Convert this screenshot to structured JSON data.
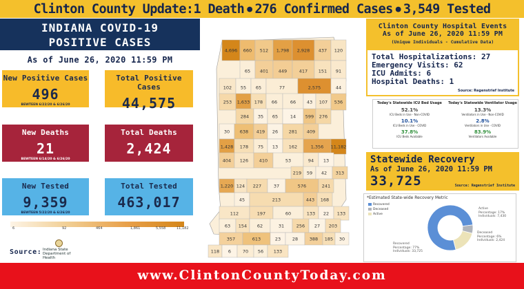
{
  "header": {
    "title": "Clinton County Update:1 Death",
    "part2": "276 Confirmed Cases",
    "part3": "3,549 Tested"
  },
  "left": {
    "title_line1": "INDIANA COVID-19",
    "title_line2": "POSITIVE CASES",
    "as_of": "As of June 26, 2020 11:59 PM",
    "cards": {
      "new_pos": {
        "label": "New Positive Cases",
        "value": "496",
        "sub": "BEWTEEN 6/22/20 & 6/26/20"
      },
      "total_pos": {
        "label": "Total Positive Cases",
        "value": "44,575"
      },
      "new_deaths": {
        "label": "New Deaths",
        "value": "21",
        "sub": "BEWTEEN 6/14/20 & 6/26/20"
      },
      "total_deaths": {
        "label": "Total Deaths",
        "value": "2,424"
      },
      "new_tested": {
        "label": "New Tested",
        "value": "9,359",
        "sub": "BEWTEEN 5/22/20 & 6/26/20"
      },
      "total_tested": {
        "label": "Total Tested",
        "value": "463,017"
      }
    },
    "legend_ticks": [
      "6",
      "92",
      "464",
      "1,861",
      "5,558",
      "11,182"
    ],
    "source_label": "Source:",
    "isdh_line1": "Indiana State",
    "isdh_line2": "Department of Health"
  },
  "map": {
    "counties": [
      {
        "v": "4,696",
        "c": "#d4861a"
      },
      {
        "v": "660",
        "c": "#eebb6e"
      },
      {
        "v": "512",
        "c": "#f1c98a"
      },
      {
        "v": "1,798",
        "c": "#e3a045"
      },
      {
        "v": "2,928",
        "c": "#dd9030"
      },
      {
        "v": "437",
        "c": "#f3cf98"
      },
      {
        "v": "120",
        "c": "#f8e5c4"
      },
      {
        "v": "65",
        "c": "#fbeed8"
      },
      {
        "v": "401",
        "c": "#f3cf98"
      },
      {
        "v": "449",
        "c": "#f3cd94"
      },
      {
        "v": "417",
        "c": "#f3cf98"
      },
      {
        "v": "151",
        "c": "#f8e2bd"
      },
      {
        "v": "91",
        "c": "#fae9cd"
      },
      {
        "v": "102",
        "c": "#f9e7c9"
      },
      {
        "v": "55",
        "c": "#fbf0dc"
      },
      {
        "v": "65",
        "c": "#fbeed8"
      },
      {
        "v": "77",
        "c": "#fbedd5"
      },
      {
        "v": "2,575",
        "c": "#dd9030"
      },
      {
        "v": "44",
        "c": "#fcf1df"
      },
      {
        "v": "253",
        "c": "#f6d9aa"
      },
      {
        "v": "1,633",
        "c": "#e3a045"
      },
      {
        "v": "178",
        "c": "#f7dfb6"
      },
      {
        "v": "66",
        "c": "#fbeed8"
      },
      {
        "v": "66",
        "c": "#fbeed8"
      },
      {
        "v": "43",
        "c": "#fcf1df"
      },
      {
        "v": "107",
        "c": "#f9e7c9"
      },
      {
        "v": "536",
        "c": "#f1c98a"
      },
      {
        "v": "284",
        "c": "#f5d7a5"
      },
      {
        "v": "35",
        "c": "#fcf2e2"
      },
      {
        "v": "65",
        "c": "#fbeed8"
      },
      {
        "v": "14",
        "c": "#fdf4e6"
      },
      {
        "v": "599",
        "c": "#f0c685"
      },
      {
        "v": "276",
        "c": "#f5d7a5"
      },
      {
        "v": "30",
        "c": "#fcf2e2"
      },
      {
        "v": "638",
        "c": "#eebf75"
      },
      {
        "v": "419",
        "c": "#f3cf98"
      },
      {
        "v": "26",
        "c": "#fcf3e4"
      },
      {
        "v": "281",
        "c": "#f5d7a5"
      },
      {
        "v": "409",
        "c": "#f3cf98"
      },
      {
        "v": "1,428",
        "c": "#e3a045"
      },
      {
        "v": "178",
        "c": "#f7dfb6"
      },
      {
        "v": "75",
        "c": "#fbedd5"
      },
      {
        "v": "13",
        "c": "#fdf4e6"
      },
      {
        "v": "162",
        "c": "#f8e1bb"
      },
      {
        "v": "1,356",
        "c": "#e5a44e"
      },
      {
        "v": "11,182",
        "c": "#d4861a"
      },
      {
        "v": "404",
        "c": "#f3cf98"
      },
      {
        "v": "126",
        "c": "#f9e5c4"
      },
      {
        "v": "410",
        "c": "#f3cf98"
      },
      {
        "v": "53",
        "c": "#fbf0dc"
      },
      {
        "v": "94",
        "c": "#fae9cd"
      },
      {
        "v": "13",
        "c": "#fdf4e6"
      },
      {
        "v": "219",
        "c": "#f6dcb0"
      },
      {
        "v": "59",
        "c": "#fbefda"
      },
      {
        "v": "42",
        "c": "#fcf1df"
      },
      {
        "v": "313",
        "c": "#f4d4a0"
      },
      {
        "v": "1,220",
        "c": "#e6a853"
      },
      {
        "v": "124",
        "c": "#f9e5c4"
      },
      {
        "v": "227",
        "c": "#f6dbae"
      },
      {
        "v": "37",
        "c": "#fcf2e2"
      },
      {
        "v": "576",
        "c": "#f0c685"
      },
      {
        "v": "241",
        "c": "#f6daac"
      },
      {
        "v": "45",
        "c": "#fcf1df"
      },
      {
        "v": "213",
        "c": "#f6dcb0"
      },
      {
        "v": "443",
        "c": "#f3cd94"
      },
      {
        "v": "168",
        "c": "#f7e0b9"
      },
      {
        "v": "112",
        "c": "#f9e6c6"
      },
      {
        "v": "197",
        "c": "#f7ddb3"
      },
      {
        "v": "60",
        "c": "#fbefda"
      },
      {
        "v": "133",
        "c": "#f9e4c1"
      },
      {
        "v": "22",
        "c": "#fdf3e5"
      },
      {
        "v": "133",
        "c": "#f9e4c1"
      },
      {
        "v": "63",
        "c": "#fbefda"
      },
      {
        "v": "154",
        "c": "#f8e2bd"
      },
      {
        "v": "62",
        "c": "#fbefda"
      },
      {
        "v": "31",
        "c": "#fcf2e2"
      },
      {
        "v": "256",
        "c": "#f6d9aa"
      },
      {
        "v": "27",
        "c": "#fcf3e4"
      },
      {
        "v": "203",
        "c": "#f7ddb3"
      },
      {
        "v": "357",
        "c": "#f4d19c"
      },
      {
        "v": "613",
        "c": "#efc27c"
      },
      {
        "v": "23",
        "c": "#fdf3e5"
      },
      {
        "v": "28",
        "c": "#fcf3e4"
      },
      {
        "v": "388",
        "c": "#f3d09b"
      },
      {
        "v": "185",
        "c": "#f7dfb6"
      },
      {
        "v": "30",
        "c": "#fcf2e2"
      },
      {
        "v": "118",
        "c": "#f9e6c6"
      },
      {
        "v": "6",
        "c": "#fdf4e6"
      },
      {
        "v": "70",
        "c": "#fbedd5"
      },
      {
        "v": "56",
        "c": "#fbf0dc"
      },
      {
        "v": "133",
        "c": "#f9e4c1"
      }
    ]
  },
  "hospital": {
    "title": "Clinton County Hospital Events",
    "as_of": "As of June 26, 2020 11:59 PM",
    "note": "(Unique Individuals - Cumulative Data)",
    "total_hosp": "Total Hospitalizations: 27",
    "er": "Emergency Visits: 62",
    "icu": "ICU Admits: 6",
    "deaths": "Hospital Deaths: 1",
    "source": "Source: Regenstrief Institute"
  },
  "usage": {
    "icu_title": "Today's Statewide ICU Bed Usage",
    "icu": [
      {
        "v": "52.1%",
        "t": "ICU Beds in Use - Non-COVID",
        "c": "#444"
      },
      {
        "v": "10.1%",
        "t": "ICU Beds in Use - COVID",
        "c": "#1d4e9a"
      },
      {
        "v": "37.8%",
        "t": "ICU Beds Available",
        "c": "#2f8f3a"
      }
    ],
    "vent_title": "Today's Statewide Ventilator Usage",
    "vent": [
      {
        "v": "13.3%",
        "t": "Ventilators in Use - Non-COVID",
        "c": "#444"
      },
      {
        "v": "2.8%",
        "t": "Ventilators in Use - COVID",
        "c": "#1d4e9a"
      },
      {
        "v": "83.9%",
        "t": "Ventilators Available",
        "c": "#2f8f3a"
      }
    ]
  },
  "recovery": {
    "title": "Statewide Recovery",
    "as_of": "As of June 26, 2020 11:59 PM",
    "value": "33,725",
    "source": "Source: Regenstrief Institute"
  },
  "metric": {
    "title": "*Estimated State-wide Recovery Metric",
    "legend": [
      {
        "label": "Recovered",
        "color": "#5b8fd6"
      },
      {
        "label": "Deceased",
        "color": "#b0b4bb"
      },
      {
        "label": "Active",
        "color": "#ece3b8"
      }
    ],
    "active_1": "Active",
    "active_2": "Percentage: 17%",
    "active_3": "Individuals: 7,430",
    "deceased_1": "Deceased",
    "deceased_2": "Percentage: 6%",
    "deceased_3": "Individuals: 2,424",
    "recovered_1": "Recovered",
    "recovered_2": "Percentage: 77%",
    "recovered_3": "Individuals: 33,725"
  },
  "chart_data": {
    "type": "pie",
    "categories": [
      "Recovered",
      "Deceased",
      "Active"
    ],
    "values": [
      77,
      6,
      17
    ],
    "title": "*Estimated State-wide Recovery Metric",
    "legend": "top-left"
  },
  "footer": {
    "url": "www.ClintonCountyToday.com"
  }
}
